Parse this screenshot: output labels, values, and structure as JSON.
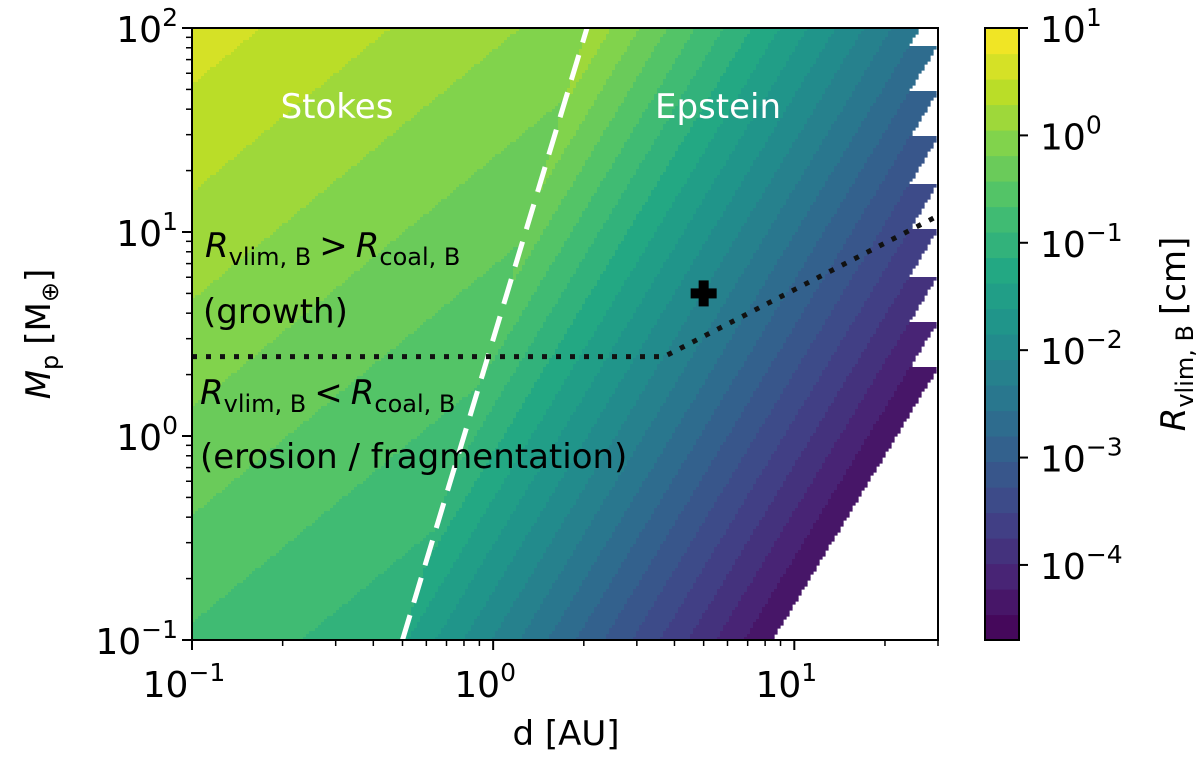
{
  "chart_data": {
    "type": "heatmap",
    "title": "",
    "xlabel": "d [AU]",
    "ylabel_main": "M",
    "ylabel_sub": "p",
    "ylabel_unit": "[M",
    "ylabel_unit_sym": "⊕",
    "ylabel_unit_close": "]",
    "x_scale": "log",
    "y_scale": "log",
    "xlim": [
      0.1,
      30
    ],
    "ylim": [
      0.1,
      100
    ],
    "grid": false,
    "x_ticks": [
      {
        "value": 0.1,
        "base": "10",
        "exp": "−1"
      },
      {
        "value": 1,
        "base": "10",
        "exp": "0"
      },
      {
        "value": 10,
        "base": "10",
        "exp": "1"
      }
    ],
    "y_ticks": [
      {
        "value": 0.1,
        "base": "10",
        "exp": "−1"
      },
      {
        "value": 1,
        "base": "10",
        "exp": "0"
      },
      {
        "value": 10,
        "base": "10",
        "exp": "1"
      },
      {
        "value": 100,
        "base": "10",
        "exp": "2"
      }
    ],
    "colorbar": {
      "label_main": "R",
      "label_sub": "vlim, B",
      "label_unit": "[cm]",
      "colormap": "viridis",
      "range": [
        2e-05,
        10
      ],
      "levels": 24,
      "ticks": [
        {
          "value": 10,
          "base": "10",
          "exp": "1"
        },
        {
          "value": 1,
          "base": "10",
          "exp": "0"
        },
        {
          "value": 0.1,
          "base": "10",
          "exp": "−1"
        },
        {
          "value": 0.01,
          "base": "10",
          "exp": "−2"
        },
        {
          "value": 0.001,
          "base": "10",
          "exp": "−3"
        },
        {
          "value": 0.0001,
          "base": "10",
          "exp": "−4"
        }
      ]
    },
    "regime_boundary": {
      "style": "white dashed",
      "points": [
        [
          0.5,
          0.1
        ],
        [
          2.05,
          100
        ]
      ]
    },
    "growth_boundary": {
      "style": "black dotted",
      "points": [
        [
          0.1,
          2.45
        ],
        [
          3.7,
          2.45
        ],
        [
          30,
          12
        ]
      ]
    },
    "marker": {
      "symbol": "plus",
      "x": 5.0,
      "y": 5.0,
      "color": "#000000"
    },
    "region_labels": [
      "Stokes",
      "Epstein"
    ],
    "annotations": {
      "growth_relation": {
        "left_main": "R",
        "left_sub": "vlim, B",
        "op": ">",
        "right_main": "R",
        "right_sub": "coal, B"
      },
      "growth_note": "(growth)",
      "erosion_relation": {
        "left_main": "R",
        "left_sub": "vlim, B",
        "op": "<",
        "right_main": "R",
        "right_sub": "coal, B"
      },
      "erosion_note": "(erosion / fragmentation)"
    }
  }
}
